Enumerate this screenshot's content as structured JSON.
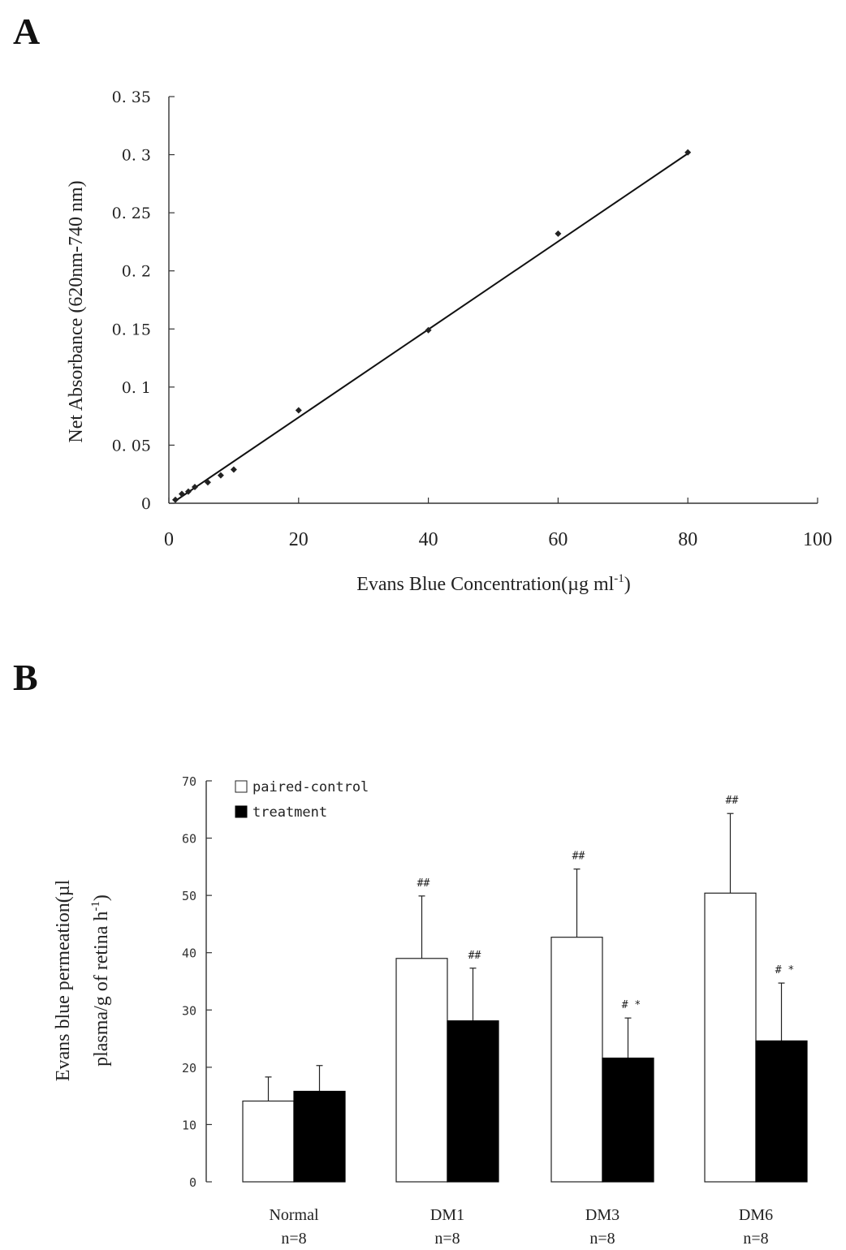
{
  "panels": {
    "a_label": "A",
    "b_label": "B"
  },
  "chart_data": [
    {
      "type": "scatter",
      "panel": "A",
      "title": "",
      "xlabel": "Evans Blue Concentration(µg ml",
      "xlabel_superscript": "-1",
      "xlabel_suffix": ")",
      "ylabel": "Net Absorbance (620nm-740 nm)",
      "xlim": [
        0,
        100
      ],
      "ylim": [
        0,
        0.35
      ],
      "x_ticks": [
        "0",
        "20",
        "40",
        "60",
        "80",
        "100"
      ],
      "x_tick_values": [
        0,
        20,
        40,
        60,
        80,
        100
      ],
      "y_ticks": [
        "0",
        "0. 05",
        "0. 1",
        "0. 15",
        "0. 2",
        "0. 25",
        "0. 3",
        "0. 35"
      ],
      "y_tick_values": [
        0,
        0.05,
        0.1,
        0.15,
        0.2,
        0.25,
        0.3,
        0.35
      ],
      "grid": false,
      "points": [
        {
          "x": 1,
          "y": 0.003
        },
        {
          "x": 2,
          "y": 0.008
        },
        {
          "x": 3,
          "y": 0.01
        },
        {
          "x": 4,
          "y": 0.014
        },
        {
          "x": 6,
          "y": 0.018
        },
        {
          "x": 8,
          "y": 0.024
        },
        {
          "x": 10,
          "y": 0.029
        },
        {
          "x": 20,
          "y": 0.08
        },
        {
          "x": 40,
          "y": 0.149
        },
        {
          "x": 60,
          "y": 0.232
        },
        {
          "x": 80,
          "y": 0.302
        }
      ],
      "trendline": {
        "x_start": 1,
        "y_start": 0.002,
        "x_end": 80,
        "y_end": 0.301
      }
    },
    {
      "type": "bar",
      "panel": "B",
      "title": "",
      "xlabel": "",
      "ylabel_line1": "Evans blue permeation(µl",
      "ylabel_line2": "plasma/g of retina h",
      "ylabel_superscript": "-1",
      "ylabel_suffix": ")",
      "ylim": [
        0,
        70
      ],
      "y_ticks": [
        "0",
        "10",
        "20",
        "30",
        "40",
        "50",
        "60",
        "70"
      ],
      "y_tick_values": [
        0,
        10,
        20,
        30,
        40,
        50,
        60,
        70
      ],
      "grid": false,
      "legend_position": "top-left",
      "categories": [
        "Normal",
        "DM1",
        "DM3",
        "DM6"
      ],
      "category_n": [
        "n=8",
        "n=8",
        "n=8",
        "n=8"
      ],
      "series": [
        {
          "name": "paired-control",
          "fill": "#ffffff",
          "values": [
            14.1,
            39.0,
            42.7,
            50.4
          ],
          "error_upper": [
            18.3,
            49.9,
            54.6,
            64.3
          ],
          "annotations": [
            "",
            "##",
            "##",
            "##"
          ]
        },
        {
          "name": "treatment",
          "fill": "#000000",
          "values": [
            15.8,
            28.1,
            21.6,
            24.6
          ],
          "error_upper": [
            20.3,
            37.3,
            28.6,
            34.7
          ],
          "annotations": [
            "",
            "##",
            "# *",
            "# *"
          ]
        }
      ]
    }
  ]
}
